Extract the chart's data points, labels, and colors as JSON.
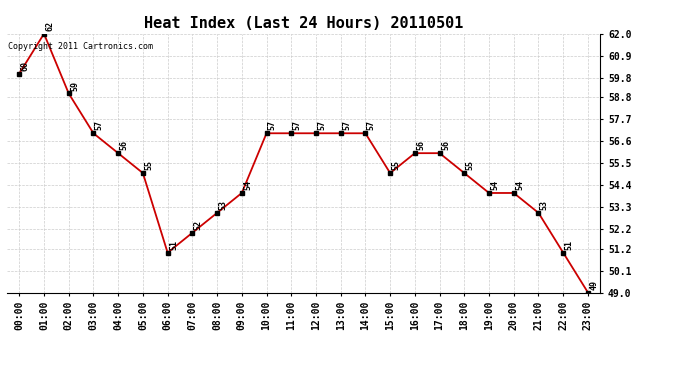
{
  "title": "Heat Index (Last 24 Hours) 20110501",
  "copyright_text": "Copyright 2011 Cartronics.com",
  "x_labels": [
    "00:00",
    "01:00",
    "02:00",
    "03:00",
    "04:00",
    "05:00",
    "06:00",
    "07:00",
    "08:00",
    "09:00",
    "10:00",
    "11:00",
    "12:00",
    "13:00",
    "14:00",
    "15:00",
    "16:00",
    "17:00",
    "18:00",
    "19:00",
    "20:00",
    "21:00",
    "22:00",
    "23:00"
  ],
  "y_values": [
    60,
    62,
    59,
    57,
    56,
    55,
    51,
    52,
    53,
    54,
    57,
    57,
    57,
    57,
    57,
    55,
    56,
    56,
    55,
    54,
    54,
    53,
    51,
    49
  ],
  "y_labels": [
    "62.0",
    "60.9",
    "59.8",
    "58.8",
    "57.7",
    "56.6",
    "55.5",
    "54.4",
    "53.3",
    "52.2",
    "51.2",
    "50.1",
    "49.0"
  ],
  "y_ticks": [
    62.0,
    60.9,
    59.8,
    58.8,
    57.7,
    56.6,
    55.5,
    54.4,
    53.3,
    52.2,
    51.2,
    50.1,
    49.0
  ],
  "ylim": [
    49.0,
    62.0
  ],
  "line_color": "#cc0000",
  "marker_color": "#000000",
  "bg_color": "#ffffff",
  "plot_bg_color": "#ffffff",
  "grid_color": "#cccccc",
  "title_fontsize": 11,
  "annotation_fontsize": 6,
  "tick_fontsize": 7,
  "copyright_fontsize": 6
}
